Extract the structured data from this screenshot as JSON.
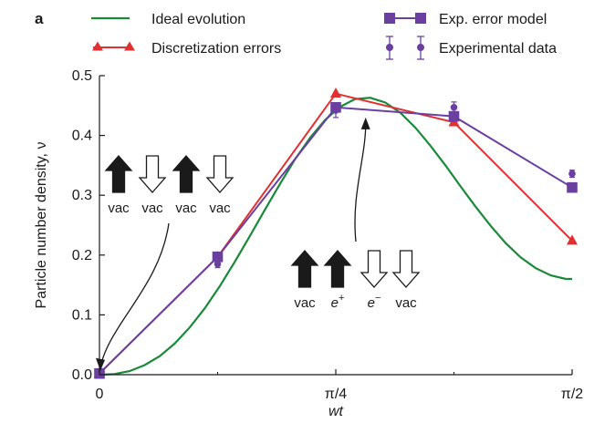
{
  "panel_label": "a",
  "colors": {
    "ideal": "#1a8a3a",
    "discretization": "#e03030",
    "model": "#6a3fa0",
    "experimental": "#6a3fa0",
    "axis": "#1a1a1a"
  },
  "chart_data": {
    "type": "line",
    "xlabel": "wt",
    "ylabel": "Particle number density, ν",
    "xlim": [
      0,
      1.5708
    ],
    "ylim": [
      0,
      0.5
    ],
    "x_ticks": [
      {
        "value": 0,
        "label": "0"
      },
      {
        "value": 0.7854,
        "label": "π/4"
      },
      {
        "value": 1.5708,
        "label": "π/2"
      }
    ],
    "y_ticks": [
      {
        "value": 0.0,
        "label": "0.0"
      },
      {
        "value": 0.1,
        "label": "0.1"
      },
      {
        "value": 0.2,
        "label": "0.2"
      },
      {
        "value": 0.3,
        "label": "0.3"
      },
      {
        "value": 0.4,
        "label": "0.4"
      },
      {
        "value": 0.5,
        "label": "0.5"
      }
    ],
    "grid": false,
    "legend_position": "top",
    "series": [
      {
        "name": "Ideal evolution",
        "kind": "curve",
        "x": [
          0,
          0.05,
          0.1,
          0.15,
          0.2,
          0.25,
          0.3,
          0.35,
          0.4,
          0.45,
          0.5,
          0.55,
          0.6,
          0.65,
          0.7,
          0.75,
          0.8,
          0.85,
          0.9,
          0.95,
          1.0,
          1.05,
          1.1,
          1.15,
          1.2,
          1.25,
          1.3,
          1.35,
          1.4,
          1.45,
          1.5,
          1.55,
          1.5708
        ],
        "y": [
          0,
          0.001,
          0.006,
          0.016,
          0.031,
          0.052,
          0.079,
          0.111,
          0.148,
          0.189,
          0.232,
          0.276,
          0.319,
          0.36,
          0.396,
          0.426,
          0.448,
          0.461,
          0.463,
          0.455,
          0.438,
          0.413,
          0.383,
          0.35,
          0.315,
          0.281,
          0.249,
          0.22,
          0.196,
          0.178,
          0.166,
          0.16,
          0.16
        ]
      },
      {
        "name": "Discretization errors",
        "kind": "line-marker",
        "marker": "triangle",
        "x": [
          0,
          0.3927,
          0.7854,
          1.1781,
          1.5708
        ],
        "y": [
          0.002,
          0.197,
          0.47,
          0.422,
          0.224
        ]
      },
      {
        "name": "Exp. error model",
        "kind": "line-marker",
        "marker": "square",
        "x": [
          0,
          0.3927,
          0.7854,
          1.1781,
          1.5708
        ],
        "y": [
          0.002,
          0.197,
          0.447,
          0.432,
          0.313
        ]
      },
      {
        "name": "Experimental data",
        "kind": "points-errorbar",
        "marker": "circle",
        "x": [
          0,
          0.3927,
          0.7854,
          1.1781,
          1.5708
        ],
        "y": [
          0.002,
          0.185,
          0.442,
          0.447,
          0.336
        ],
        "yerr": [
          0.003,
          0.006,
          0.012,
          0.009,
          0.006
        ]
      }
    ],
    "annotations": [
      {
        "id": "initial",
        "arrows": [
          "up-filled",
          "down-open",
          "up-filled",
          "down-open"
        ],
        "labels": [
          "vac",
          "vac",
          "vac",
          "vac"
        ],
        "points_to": {
          "x": 0,
          "y": 0.002
        }
      },
      {
        "id": "peak",
        "arrows": [
          "up-filled",
          "up-filled",
          "down-open",
          "down-open"
        ],
        "labels": [
          "vac",
          "e",
          "e",
          "vac"
        ],
        "superscripts": [
          "",
          "+",
          "−",
          ""
        ],
        "points_to": {
          "x": 0.8846,
          "y": 0.43
        }
      }
    ]
  }
}
